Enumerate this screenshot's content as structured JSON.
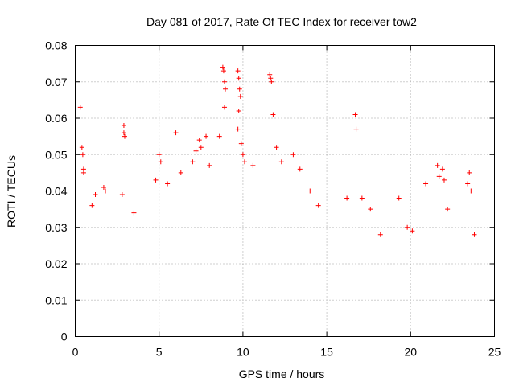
{
  "chart_data": {
    "type": "scatter",
    "title": "Day 081 of 2017, Rate Of TEC Index for receiver tow2",
    "xlabel": "GPS time / hours",
    "ylabel": "ROTI / TECUs",
    "xlim": [
      0,
      25
    ],
    "ylim": [
      0,
      0.08
    ],
    "xticks": [
      {
        "value": 0,
        "label": "0"
      },
      {
        "value": 5,
        "label": "5"
      },
      {
        "value": 10,
        "label": "10"
      },
      {
        "value": 15,
        "label": "15"
      },
      {
        "value": 20,
        "label": "20"
      },
      {
        "value": 25,
        "label": "25"
      }
    ],
    "yticks": [
      {
        "value": 0,
        "label": "0"
      },
      {
        "value": 0.01,
        "label": "0.01"
      },
      {
        "value": 0.02,
        "label": "0.02"
      },
      {
        "value": 0.03,
        "label": "0.03"
      },
      {
        "value": 0.04,
        "label": "0.04"
      },
      {
        "value": 0.05,
        "label": "0.05"
      },
      {
        "value": 0.06,
        "label": "0.06"
      },
      {
        "value": 0.07,
        "label": "0.07"
      },
      {
        "value": 0.08,
        "label": "0.08"
      }
    ],
    "grid": true,
    "marker": "+",
    "color": "#ff0000",
    "series": [
      {
        "name": "tow2",
        "points": [
          [
            0.3,
            0.063
          ],
          [
            0.4,
            0.052
          ],
          [
            0.45,
            0.05
          ],
          [
            0.5,
            0.046
          ],
          [
            0.5,
            0.045
          ],
          [
            1.0,
            0.036
          ],
          [
            1.2,
            0.039
          ],
          [
            1.7,
            0.041
          ],
          [
            1.8,
            0.04
          ],
          [
            2.9,
            0.058
          ],
          [
            2.9,
            0.056
          ],
          [
            2.95,
            0.055
          ],
          [
            2.8,
            0.039
          ],
          [
            3.5,
            0.034
          ],
          [
            4.8,
            0.043
          ],
          [
            5.0,
            0.05
          ],
          [
            5.1,
            0.048
          ],
          [
            5.5,
            0.042
          ],
          [
            6.0,
            0.056
          ],
          [
            6.3,
            0.045
          ],
          [
            7.0,
            0.048
          ],
          [
            7.2,
            0.051
          ],
          [
            7.4,
            0.054
          ],
          [
            7.5,
            0.052
          ],
          [
            7.8,
            0.055
          ],
          [
            8.0,
            0.047
          ],
          [
            8.8,
            0.074
          ],
          [
            8.85,
            0.073
          ],
          [
            8.9,
            0.07
          ],
          [
            8.95,
            0.068
          ],
          [
            8.9,
            0.063
          ],
          [
            8.6,
            0.055
          ],
          [
            9.7,
            0.073
          ],
          [
            9.75,
            0.071
          ],
          [
            9.8,
            0.068
          ],
          [
            9.85,
            0.066
          ],
          [
            9.75,
            0.062
          ],
          [
            9.7,
            0.057
          ],
          [
            9.9,
            0.053
          ],
          [
            10.0,
            0.05
          ],
          [
            10.1,
            0.048
          ],
          [
            10.6,
            0.047
          ],
          [
            11.6,
            0.072
          ],
          [
            11.65,
            0.071
          ],
          [
            11.7,
            0.07
          ],
          [
            11.8,
            0.061
          ],
          [
            12.0,
            0.052
          ],
          [
            12.3,
            0.048
          ],
          [
            13.0,
            0.05
          ],
          [
            13.4,
            0.046
          ],
          [
            14.0,
            0.04
          ],
          [
            14.5,
            0.036
          ],
          [
            16.2,
            0.038
          ],
          [
            16.7,
            0.061
          ],
          [
            16.75,
            0.057
          ],
          [
            17.1,
            0.038
          ],
          [
            17.6,
            0.035
          ],
          [
            18.2,
            0.028
          ],
          [
            19.3,
            0.038
          ],
          [
            19.8,
            0.03
          ],
          [
            20.1,
            0.029
          ],
          [
            20.9,
            0.042
          ],
          [
            21.6,
            0.047
          ],
          [
            21.7,
            0.044
          ],
          [
            21.9,
            0.046
          ],
          [
            22.0,
            0.043
          ],
          [
            22.2,
            0.035
          ],
          [
            23.4,
            0.042
          ],
          [
            23.5,
            0.045
          ],
          [
            23.6,
            0.04
          ],
          [
            23.8,
            0.028
          ]
        ]
      }
    ]
  }
}
